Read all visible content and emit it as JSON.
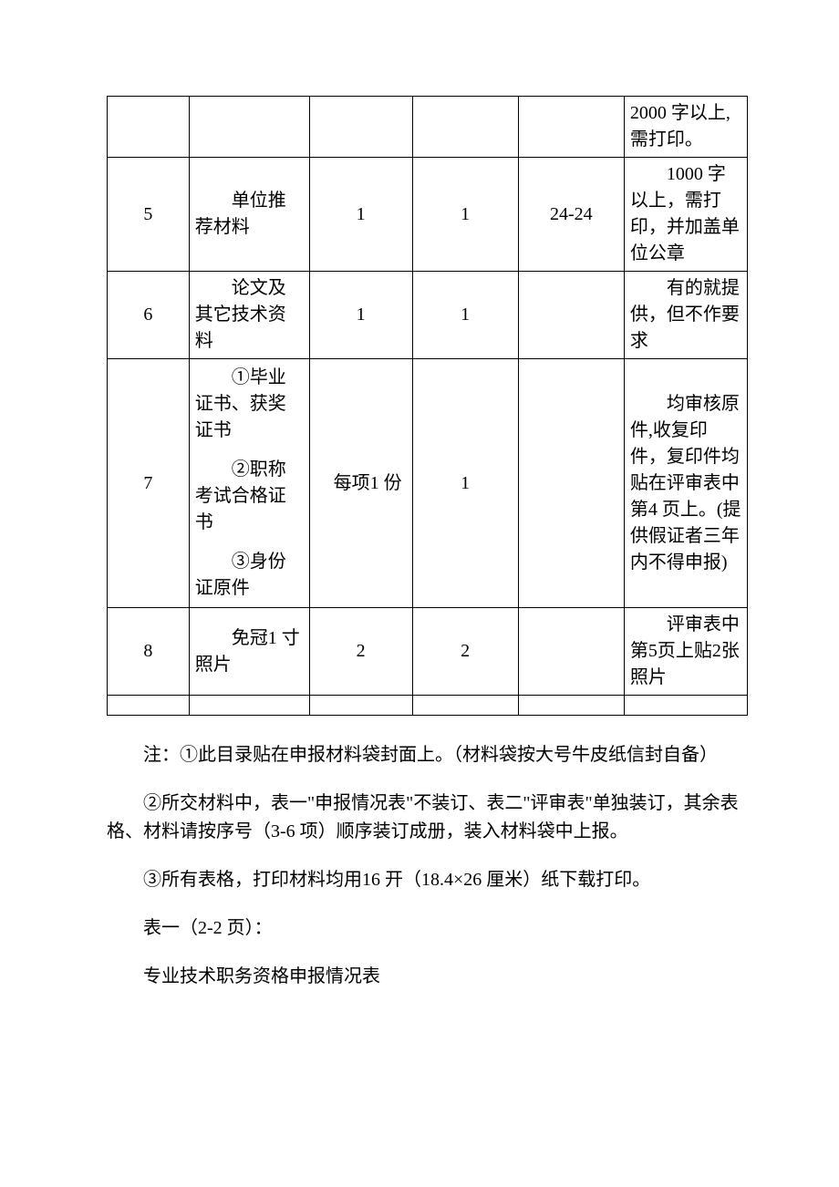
{
  "table": {
    "rows": [
      {
        "seq": "",
        "name": "",
        "qty1": "",
        "qty2": "",
        "page": "",
        "remark": "2000 字以上,需打印。"
      },
      {
        "seq": "5",
        "name": "单位推荐材料",
        "qty1": "1",
        "qty2": "1",
        "page": "24-24",
        "remark": "1000 字以上，需打印，并加盖单位公章"
      },
      {
        "seq": "6",
        "name": "论文及其它技术资料",
        "qty1": "1",
        "qty2": "1",
        "page": "",
        "remark": "有的就提供，但不作要求"
      },
      {
        "seq": "7",
        "name_parts": [
          "①毕业证书、获奖证书",
          "②职称考试合格证书",
          "③身份证原件"
        ],
        "qty1": "每项1 份",
        "qty2": "1",
        "page": "",
        "remark": "均审核原件,收复印件，复印件均贴在评审表中第4 页上。(提供假证者三年内不得申报)"
      },
      {
        "seq": "8",
        "name": "免冠1 寸照片",
        "qty1": "2",
        "qty2": "2",
        "page": "",
        "remark": "评审表中第5页上贴2张照片"
      }
    ]
  },
  "notes": [
    "注：①此目录贴在申报材料袋封面上。（材料袋按大号牛皮纸信封自备）",
    "②所交材料中，表一\"申报情况表\"不装订、表二\"评审表\"单独装订，其余表格、材料请按序号（3-6 项）顺序装订成册，装入材料袋中上报。",
    "③所有表格，打印材料均用16 开（18.4×26 厘米）纸下载打印。",
    "表一（2-2 页）：",
    "专业技术职务资格申报情况表"
  ]
}
